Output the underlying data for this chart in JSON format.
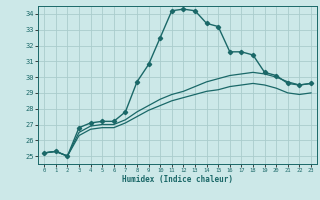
{
  "title": "",
  "xlabel": "Humidex (Indice chaleur)",
  "ylabel": "",
  "bg_color": "#cce8e8",
  "grid_color": "#aacccc",
  "line_color": "#1a6868",
  "xlim": [
    -0.5,
    23.5
  ],
  "ylim": [
    24.5,
    34.5
  ],
  "xticks": [
    0,
    1,
    2,
    3,
    4,
    5,
    6,
    7,
    8,
    9,
    10,
    11,
    12,
    13,
    14,
    15,
    16,
    17,
    18,
    19,
    20,
    21,
    22,
    23
  ],
  "yticks": [
    25,
    26,
    27,
    28,
    29,
    30,
    31,
    32,
    33,
    34
  ],
  "series": [
    {
      "x": [
        0,
        1,
        2,
        3,
        4,
        5,
        6,
        7,
        8,
        9,
        10,
        11,
        12,
        13,
        14,
        15,
        16,
        17,
        18,
        19,
        20,
        21,
        22,
        23
      ],
      "y": [
        25.2,
        25.3,
        25.0,
        26.8,
        27.1,
        27.2,
        27.2,
        27.8,
        29.7,
        30.8,
        32.5,
        34.2,
        34.3,
        34.2,
        33.4,
        33.2,
        31.6,
        31.6,
        31.4,
        30.3,
        30.1,
        29.6,
        29.5,
        29.6
      ],
      "marker": "D",
      "markersize": 2.2,
      "linewidth": 1.0
    },
    {
      "x": [
        0,
        1,
        2,
        3,
        4,
        5,
        6,
        7,
        8,
        9,
        10,
        11,
        12,
        13,
        14,
        15,
        16,
        17,
        18,
        19,
        20,
        21,
        22,
        23
      ],
      "y": [
        25.2,
        25.3,
        25.0,
        26.5,
        26.9,
        27.0,
        27.0,
        27.3,
        27.8,
        28.2,
        28.6,
        28.9,
        29.1,
        29.4,
        29.7,
        29.9,
        30.1,
        30.2,
        30.3,
        30.2,
        30.0,
        29.7,
        29.5,
        29.6
      ],
      "marker": null,
      "markersize": 0,
      "linewidth": 0.9
    },
    {
      "x": [
        0,
        1,
        2,
        3,
        4,
        5,
        6,
        7,
        8,
        9,
        10,
        11,
        12,
        13,
        14,
        15,
        16,
        17,
        18,
        19,
        20,
        21,
        22,
        23
      ],
      "y": [
        25.2,
        25.3,
        25.0,
        26.3,
        26.7,
        26.8,
        26.8,
        27.1,
        27.5,
        27.9,
        28.2,
        28.5,
        28.7,
        28.9,
        29.1,
        29.2,
        29.4,
        29.5,
        29.6,
        29.5,
        29.3,
        29.0,
        28.9,
        29.0
      ],
      "marker": null,
      "markersize": 0,
      "linewidth": 0.9
    }
  ]
}
